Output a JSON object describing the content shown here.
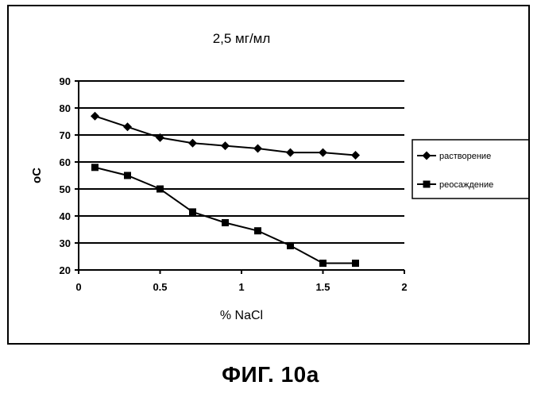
{
  "chart_data": {
    "type": "line",
    "title": "2,5 мг/мл",
    "xlabel": "% NaCl",
    "ylabel": "oC",
    "xlim": [
      0,
      2
    ],
    "ylim": [
      20,
      90
    ],
    "x_ticks": [
      0,
      0.5,
      1,
      1.5,
      2
    ],
    "x_tick_labels": [
      "0",
      "0.5",
      "1",
      "1.5",
      "2"
    ],
    "y_ticks": [
      20,
      30,
      40,
      50,
      60,
      70,
      80,
      90
    ],
    "y_tick_labels": [
      "20",
      "30",
      "40",
      "50",
      "60",
      "70",
      "80",
      "90"
    ],
    "grid": "horizontal",
    "legend_position": "right",
    "series": [
      {
        "name": "растворение",
        "marker": "diamond",
        "color": "#000000",
        "x": [
          0.1,
          0.3,
          0.5,
          0.7,
          0.9,
          1.1,
          1.3,
          1.5,
          1.7
        ],
        "y": [
          77,
          73,
          69,
          67,
          66,
          65,
          63.5,
          63.5,
          62.5
        ]
      },
      {
        "name": "реосаждение",
        "marker": "square",
        "color": "#000000",
        "x": [
          0.1,
          0.3,
          0.5,
          0.7,
          0.9,
          1.1,
          1.3,
          1.5,
          1.7
        ],
        "y": [
          58,
          55,
          50,
          41.5,
          37.5,
          34.5,
          29,
          22.5,
          22.5
        ]
      }
    ]
  },
  "figure_caption": "ФИГ. 10а"
}
